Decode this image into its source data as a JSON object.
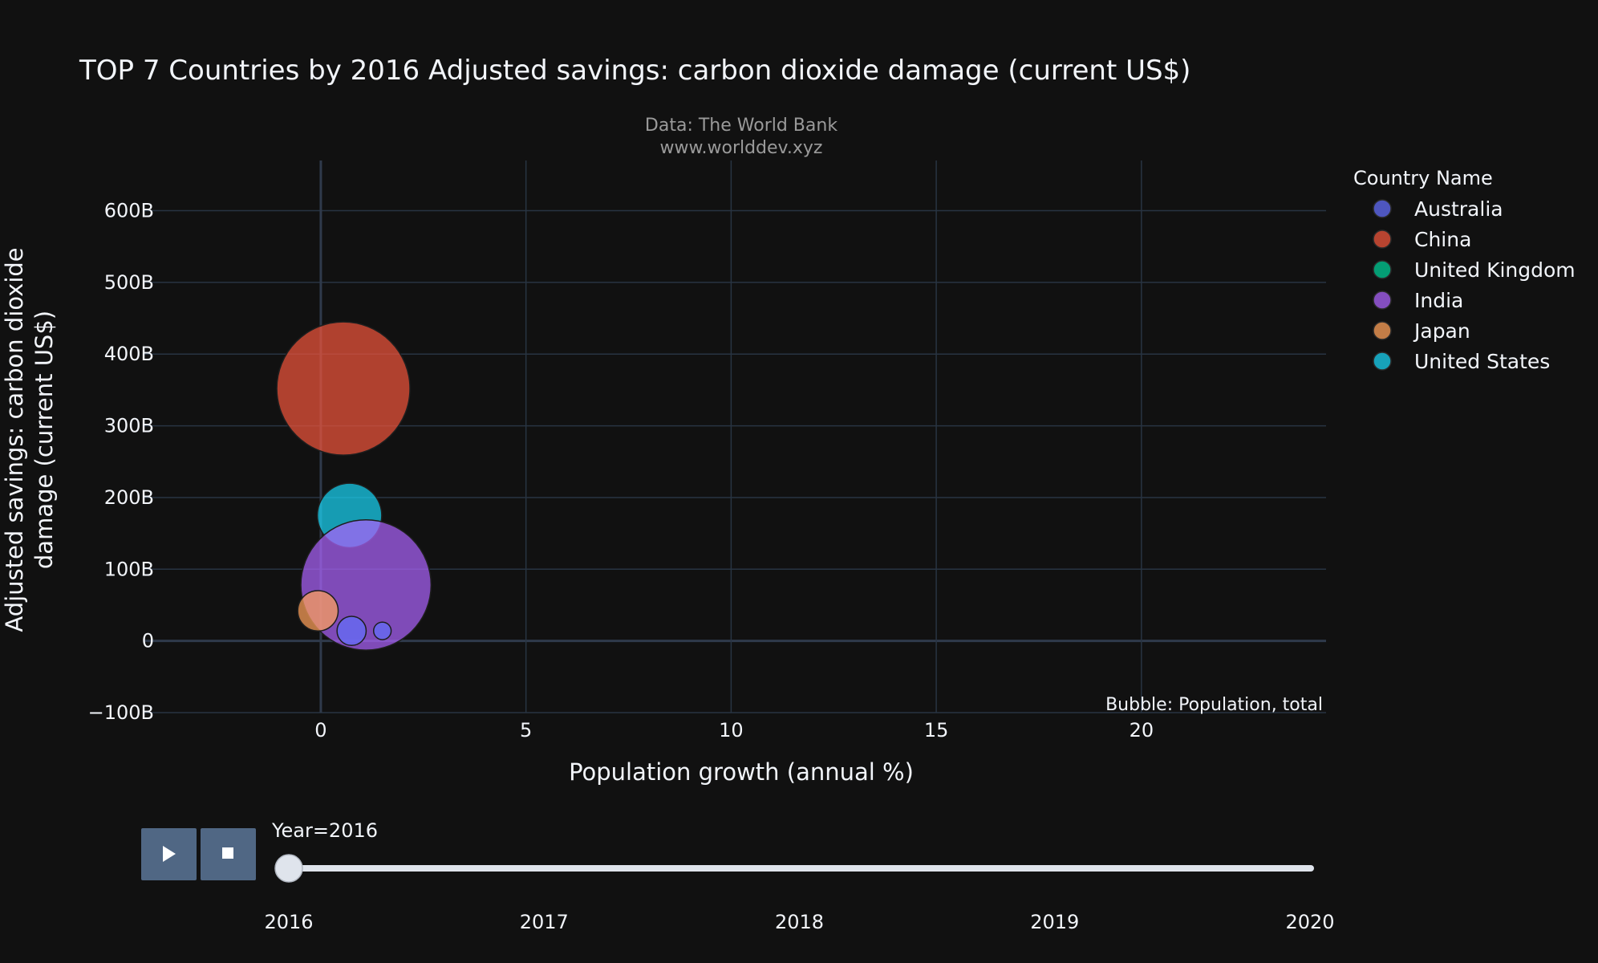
{
  "chart_data": {
    "type": "scatter",
    "title": "TOP 7 Countries by 2016 Adjusted savings: carbon dioxide damage (current US$)",
    "subtitle_lines": [
      "Data: The World Bank",
      "www.worlddev.xyz"
    ],
    "xlabel": "Population growth (annual %)",
    "ylabel_lines": [
      "Adjusted savings: carbon dioxide",
      "damage (current US$)"
    ],
    "xlim": [
      -4.3,
      24.5
    ],
    "ylim": [
      -100,
      670
    ],
    "x_ticks": [
      0,
      5,
      10,
      15,
      20
    ],
    "y_ticks": [
      -100,
      0,
      100,
      200,
      300,
      400,
      500,
      600
    ],
    "y_tick_labels": [
      "−100B",
      "0",
      "100B",
      "200B",
      "300B",
      "400B",
      "500B",
      "600B"
    ],
    "y_unit": "billions (current US$)",
    "grid": true,
    "legend_placement": "right",
    "legend_title": "Country Name",
    "annotation": "Bubble: Population, total",
    "series": [
      {
        "name": "Australia",
        "color": "#636efa",
        "points": [
          {
            "x": 1.5,
            "y": 14,
            "size": 24
          }
        ]
      },
      {
        "name": "China",
        "color": "#ef553b",
        "points": [
          {
            "x": 0.55,
            "y": 352,
            "size": 1380
          }
        ]
      },
      {
        "name": "United Kingdom",
        "color": "#00cc96",
        "points": []
      },
      {
        "name": "India",
        "color": "#ab63fa",
        "points": [
          {
            "x": 1.1,
            "y": 78,
            "size": 1320
          }
        ]
      },
      {
        "name": "Japan",
        "color": "#ffa15a",
        "points": [
          {
            "x": -0.07,
            "y": 42,
            "size": 127
          }
        ]
      },
      {
        "name": "United States",
        "color": "#19d3f3",
        "points": [
          {
            "x": 0.7,
            "y": 175,
            "size": 323
          }
        ]
      },
      {
        "name": "",
        "color": "#636efa",
        "points": [
          {
            "x": 0.75,
            "y": 14,
            "size": 66
          }
        ]
      }
    ]
  },
  "slider": {
    "label": "Year=2016",
    "years": [
      "2016",
      "2017",
      "2018",
      "2019",
      "2020"
    ],
    "current": "2016",
    "play_icon": "play-icon",
    "stop_icon": "stop-icon"
  }
}
